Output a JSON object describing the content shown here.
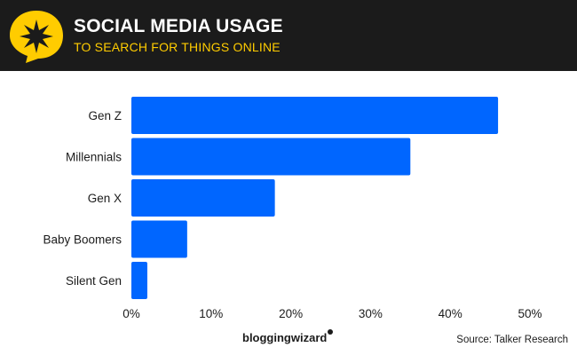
{
  "header": {
    "title": "SOCIAL MEDIA USAGE",
    "subtitle": "TO SEARCH FOR THINGS ONLINE",
    "logo_icon": "star-speech-bubble-icon"
  },
  "colors": {
    "header_bg": "#1b1b1b",
    "accent": "#ffcc00",
    "bar": "#0066ff"
  },
  "chart_data": {
    "type": "bar",
    "orientation": "horizontal",
    "categories": [
      "Gen Z",
      "Millennials",
      "Gen X",
      "Baby Boomers",
      "Silent Gen"
    ],
    "values": [
      46,
      35,
      18,
      7,
      2
    ],
    "xlim": [
      0,
      50
    ],
    "x_ticks": [
      0,
      10,
      20,
      30,
      40,
      50
    ],
    "x_tick_labels": [
      "0%",
      "10%",
      "20%",
      "30%",
      "40%",
      "50%"
    ],
    "grid": false,
    "legend": "none"
  },
  "footer": {
    "brand": "bloggingwizard",
    "source": "Source: Talker Research"
  }
}
